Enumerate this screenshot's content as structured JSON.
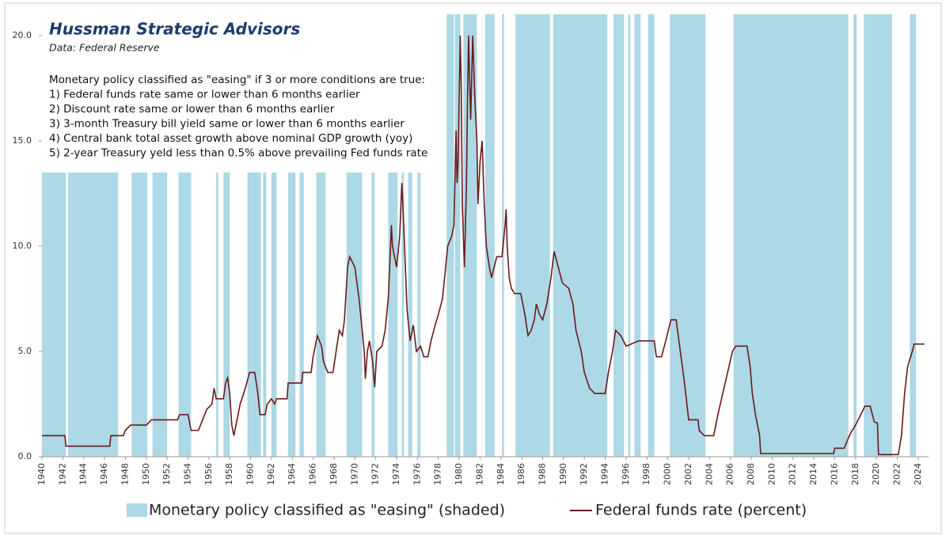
{
  "chart_data": {
    "type": "line",
    "title": "Hussman Strategic Advisors",
    "subtitle": "Data: Federal Reserve",
    "annotations": [
      "Monetary policy classified as \"easing\" if 3 or more conditions are true:",
      "1) Federal funds rate same or lower than 6 months earlier",
      "2) Discount rate same or lower than 6 months earlier",
      "3) 3-month Treasury bill yield same or lower than 6 months earlier",
      "4) Central bank total asset growth above nominal GDP growth (yoy)",
      "5) 2-year Treasury yeld less than 0.5% above prevailing Fed funds rate"
    ],
    "xlim": [
      1940,
      2025
    ],
    "xticks": [
      1940,
      1942,
      1944,
      1946,
      1948,
      1950,
      1952,
      1954,
      1956,
      1958,
      1960,
      1962,
      1964,
      1966,
      1968,
      1970,
      1972,
      1974,
      1976,
      1978,
      1980,
      1982,
      1984,
      1986,
      1988,
      1990,
      1992,
      1994,
      1996,
      1998,
      2000,
      2002,
      2004,
      2006,
      2008,
      2010,
      2012,
      2014,
      2016,
      2018,
      2020,
      2022,
      2024
    ],
    "ylim": [
      0,
      20
    ],
    "yticks": [
      {
        "value": 0,
        "label": "0.0"
      },
      {
        "value": 5,
        "label": "5.0"
      },
      {
        "value": 10,
        "label": "10.0"
      },
      {
        "value": 15,
        "label": "15.0"
      },
      {
        "value": 20,
        "label": "20.0"
      }
    ],
    "shading": {
      "name": "Monetary policy classified as \"easing\" (shaded)",
      "color": "#add8e6",
      "start": [
        1940,
        1942.5,
        1948.6,
        1950.6,
        1953.1,
        1956.7,
        1957.4,
        1959.7,
        1961.2,
        1962,
        1963.6,
        1964.7,
        1966.3,
        1969.2,
        1971.6,
        1973.2,
        1974.5,
        1975.1,
        1976,
        1978.8,
        1979.6,
        1980.4,
        1982.5,
        1984.1,
        1985.4,
        1989,
        1994.8,
        1996.2,
        1996.8,
        1998.1,
        2000.2,
        2006.3,
        2017.8,
        2018.8,
        2023.2
      ],
      "end": [
        1942.3,
        1947.3,
        1950.1,
        1952,
        1954.3,
        1956.9,
        1958,
        1961,
        1961.5,
        1962.5,
        1964.3,
        1965.1,
        1967.2,
        1970.7,
        1971.9,
        1974.1,
        1974.7,
        1975.5,
        1976.3,
        1979.5,
        1980.1,
        1981.7,
        1983.4,
        1984.3,
        1988.7,
        1994.2,
        1995.8,
        1996.4,
        1997.4,
        1998.7,
        2003.6,
        2017.3,
        2018.1,
        2021.5,
        2023.8
      ]
    },
    "x": [
      1940,
      1942.2,
      1942.3,
      1946.5,
      1946.6,
      1947.8,
      1948,
      1948.5,
      1950,
      1950.5,
      1953,
      1953.2,
      1954,
      1954.3,
      1955,
      1955.4,
      1955.8,
      1956.3,
      1956.5,
      1956.7,
      1957.4,
      1957.6,
      1957.8,
      1958,
      1958.2,
      1958.4,
      1958.7,
      1959,
      1959.5,
      1959.9,
      1960.4,
      1960.7,
      1960.9,
      1961.4,
      1961.6,
      1962,
      1962.3,
      1962.5,
      1963.5,
      1963.6,
      1964.9,
      1965,
      1965.8,
      1966,
      1966.4,
      1966.8,
      1967,
      1967.4,
      1967.9,
      1968.2,
      1968.5,
      1968.8,
      1969,
      1969.3,
      1969.5,
      1970,
      1970.4,
      1970.7,
      1970.9,
      1971,
      1971.2,
      1971.4,
      1971.7,
      1971.9,
      1972.1,
      1972.6,
      1972.9,
      1973.2,
      1973.4,
      1973.5,
      1973.6,
      1974,
      1974.3,
      1974.5,
      1974.6,
      1974.8,
      1975,
      1975.3,
      1975.6,
      1975.9,
      1976.3,
      1976.6,
      1977,
      1977.3,
      1977.7,
      1978,
      1978.4,
      1978.7,
      1978.9,
      1979.3,
      1979.5,
      1979.7,
      1979.8,
      1979.9,
      1980.1,
      1980.2,
      1980.3,
      1980.5,
      1980.7,
      1980.8,
      1980.9,
      1981.1,
      1981.3,
      1981.5,
      1981.7,
      1981.8,
      1982,
      1982.2,
      1982.4,
      1982.6,
      1982.9,
      1983.1,
      1983.6,
      1984.1,
      1984.4,
      1984.5,
      1984.6,
      1984.8,
      1985,
      1985.3,
      1985.9,
      1986.3,
      1986.6,
      1986.9,
      1987.2,
      1987.4,
      1987.7,
      1988,
      1988.4,
      1988.8,
      1989.1,
      1989.5,
      1989.9,
      1990.5,
      1990.9,
      1991.2,
      1991.7,
      1992,
      1992.5,
      1993,
      1994,
      1994.3,
      1994.7,
      1995,
      1995.5,
      1996,
      1997.2,
      1998.7,
      1998.9,
      1999.4,
      1999.8,
      2000.3,
      2000.8,
      2001.2,
      2001.6,
      2002,
      2002.9,
      2003,
      2003.5,
      2004.4,
      2004.8,
      2005.5,
      2006.2,
      2006.5,
      2007.6,
      2007.9,
      2008.1,
      2008.4,
      2008.8,
      2008.9,
      2015.9,
      2016,
      2016.9,
      2017.5,
      2018,
      2018.9,
      2019.4,
      2019.8,
      2020.1,
      2020.2,
      2022.1,
      2022.4,
      2022.7,
      2023,
      2023.5,
      2023.6,
      2024.6
    ],
    "series": [
      {
        "name": "Federal funds rate (percent)",
        "color": "#6b1a1a",
        "values": [
          1,
          1,
          0.5,
          0.5,
          1,
          1,
          1.25,
          1.5,
          1.5,
          1.75,
          1.75,
          2,
          2,
          1.25,
          1.25,
          1.75,
          2.25,
          2.5,
          3.25,
          2.75,
          2.75,
          3.5,
          3.75,
          3,
          1.5,
          1,
          1.75,
          2.5,
          3.25,
          4,
          4,
          3,
          2,
          2,
          2.5,
          2.75,
          2.5,
          2.75,
          2.75,
          3.5,
          3.5,
          4,
          4,
          4.75,
          5.75,
          5.25,
          4.5,
          4,
          4,
          5,
          6,
          5.75,
          6.5,
          9,
          9.5,
          9,
          7.5,
          6,
          5,
          3.7,
          5,
          5.5,
          4.5,
          3.3,
          5,
          5.25,
          6,
          7.5,
          9.75,
          11,
          10,
          9,
          10.5,
          13,
          12,
          9.5,
          7,
          5.5,
          6.25,
          5,
          5.25,
          4.75,
          4.75,
          5.5,
          6.25,
          6.75,
          7.5,
          9,
          10,
          10.5,
          11,
          15.5,
          13,
          14,
          20,
          17.5,
          12,
          9,
          13,
          17,
          20,
          16,
          20,
          17,
          15,
          12,
          14,
          15,
          12,
          10,
          9,
          8.5,
          9.5,
          9.5,
          11,
          11.75,
          10,
          8.5,
          8,
          7.75,
          7.75,
          6.75,
          5.75,
          6,
          6.5,
          7.25,
          6.75,
          6.5,
          7.25,
          8.5,
          9.75,
          9,
          8.25,
          8,
          7.25,
          6,
          5,
          4,
          3.25,
          3,
          3,
          4,
          5,
          6,
          5.75,
          5.25,
          5.5,
          5.5,
          4.75,
          4.75,
          5.5,
          6.5,
          6.5,
          5,
          3.5,
          1.75,
          1.75,
          1.25,
          1,
          1,
          2,
          3.5,
          5,
          5.25,
          5.25,
          4.25,
          3,
          2,
          1,
          0.15,
          0.15,
          0.4,
          0.4,
          1.1,
          1.5,
          2.4,
          2.4,
          1.65,
          1.6,
          0.1,
          0.1,
          1,
          3,
          4.3,
          5.1,
          5.35,
          5.35
        ]
      }
    ]
  }
}
